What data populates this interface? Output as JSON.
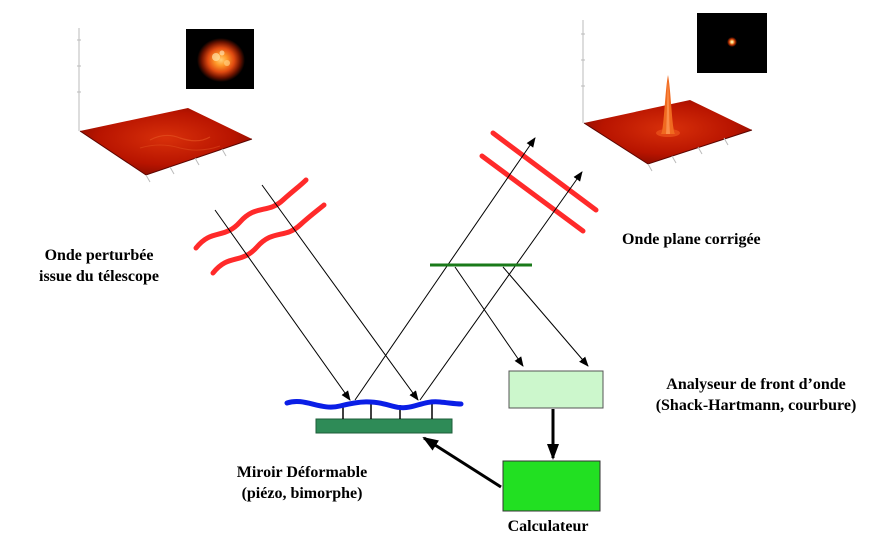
{
  "labels": {
    "disturbed_wave": [
      "Onde perturbée",
      "issue du télescope"
    ],
    "corrected_wave": "Onde plane corrigée",
    "wavefront_analyzer": [
      "Analyseur de front d’onde",
      "(Shack-Hartmann, courbure)"
    ],
    "deformable_mirror": [
      "Miroir Déformable",
      "(piézo, bimorphe)"
    ],
    "computer": "Calculateur"
  },
  "colors": {
    "wavefront": "#ff2a2a",
    "mirror_surface": "#0a1ee6",
    "mirror_base": "#2e8b57",
    "beamsplitter": "#1a7a1a",
    "analyzer_box": "#ccf7cc",
    "computer_box": "#22e022",
    "psf_surface": "#c41600"
  },
  "icons": {
    "psf_before": "blurred-psf-image",
    "psf_after": "sharp-psf-image",
    "surface_before": "flat-psf-surface-plot",
    "surface_after": "peaked-psf-surface-plot"
  }
}
